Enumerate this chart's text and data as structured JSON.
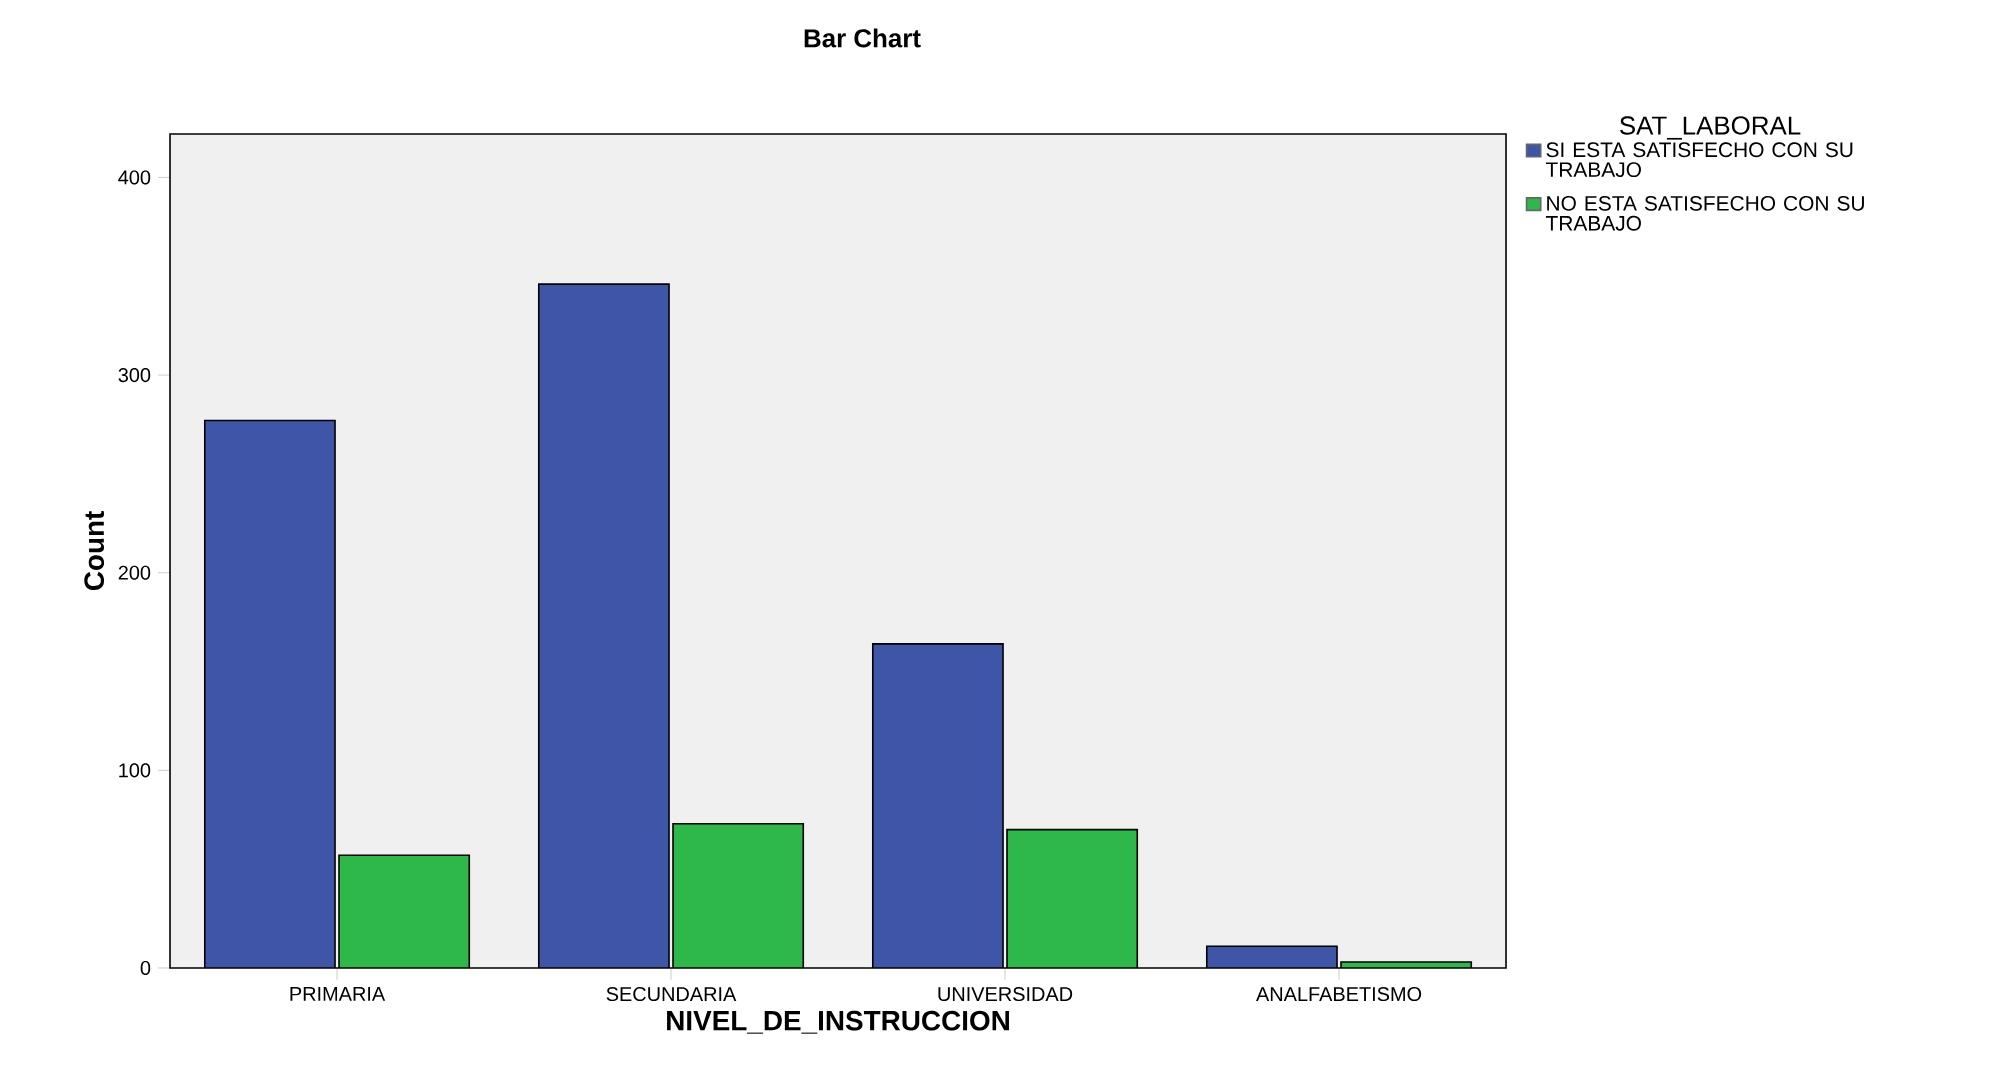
{
  "chart_data": {
    "type": "bar",
    "title": "Bar Chart",
    "xlabel": "NIVEL_DE_INSTRUCCION",
    "ylabel": "Count",
    "legend_title": "SAT_LABORAL",
    "categories": [
      "PRIMARIA",
      "SECUNDARIA",
      "UNIVERSIDAD",
      "ANALFABETISMO"
    ],
    "series": [
      {
        "name": "SI ESTA SATISFECHO CON SU TRABAJO",
        "color": "#3f56a8",
        "values": [
          277,
          346,
          164,
          11
        ]
      },
      {
        "name": "NO ESTA SATISFECHO CON SU TRABAJO",
        "color": "#2fb84a",
        "values": [
          57,
          73,
          70,
          3
        ]
      }
    ],
    "ylim": [
      0,
      422
    ],
    "yticks": [
      0,
      100,
      200,
      300,
      400
    ],
    "grid": false,
    "legend": "right"
  }
}
